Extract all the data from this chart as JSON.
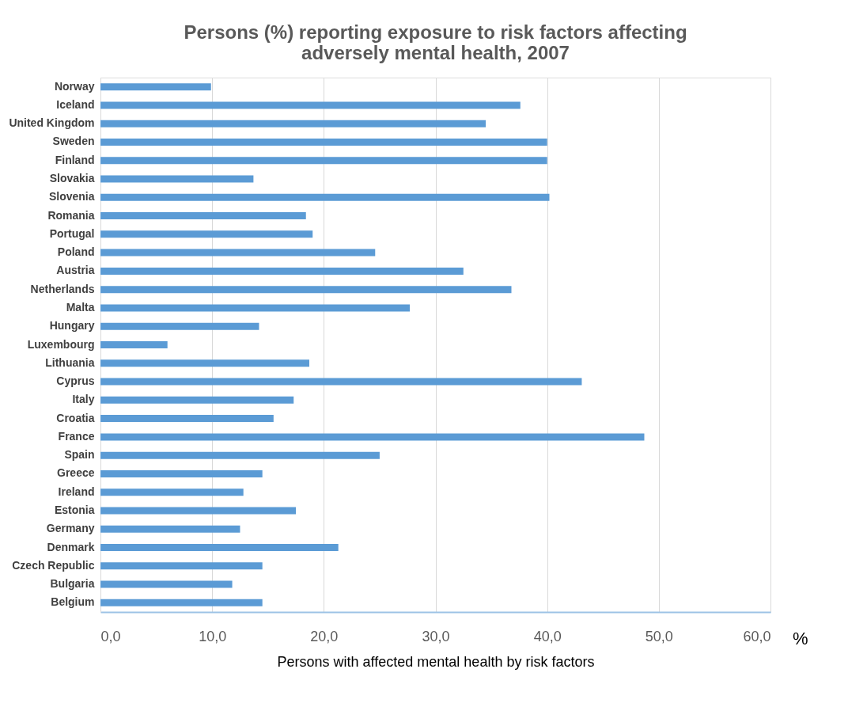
{
  "chart_data": {
    "type": "bar",
    "orientation": "horizontal",
    "title": "Persons (%) reporting exposure to risk factors affecting adversely mental health, 2007",
    "xlabel": "Persons with affected mental health by risk factors",
    "annotations": [
      "%"
    ],
    "categories": [
      "Norway",
      "Iceland",
      "United Kingdom",
      "Sweden",
      "Finland",
      "Slovakia",
      "Slovenia",
      "Romania",
      "Portugal",
      "Poland",
      "Austria",
      "Netherlands",
      "Malta",
      "Hungary",
      "Luxembourg",
      "Lithuania",
      "Cyprus",
      "Italy",
      "Croatia",
      "France",
      "Spain",
      "Greece",
      "Ireland",
      "Estonia",
      "Germany",
      "Denmark",
      "Czech Republic",
      "Bulgaria",
      "Belgium"
    ],
    "values": [
      9.9,
      37.6,
      34.5,
      40.0,
      40.0,
      13.7,
      40.2,
      18.4,
      19.0,
      24.6,
      32.5,
      36.8,
      27.7,
      14.2,
      6.0,
      18.7,
      43.1,
      17.3,
      15.5,
      48.7,
      25.0,
      14.5,
      12.8,
      17.5,
      12.5,
      21.3,
      14.5,
      11.8,
      14.5
    ],
    "color": "#5b9bd5",
    "xlim": [
      0,
      60
    ],
    "xticks": [
      {
        "value": 0,
        "label": "0,0"
      },
      {
        "value": 10,
        "label": "10,0"
      },
      {
        "value": 20,
        "label": "20,0"
      },
      {
        "value": 30,
        "label": "30,0"
      },
      {
        "value": 40,
        "label": "40,0"
      },
      {
        "value": 50,
        "label": "50,0"
      },
      {
        "value": 60,
        "label": "60,0"
      }
    ],
    "grid": "x"
  }
}
